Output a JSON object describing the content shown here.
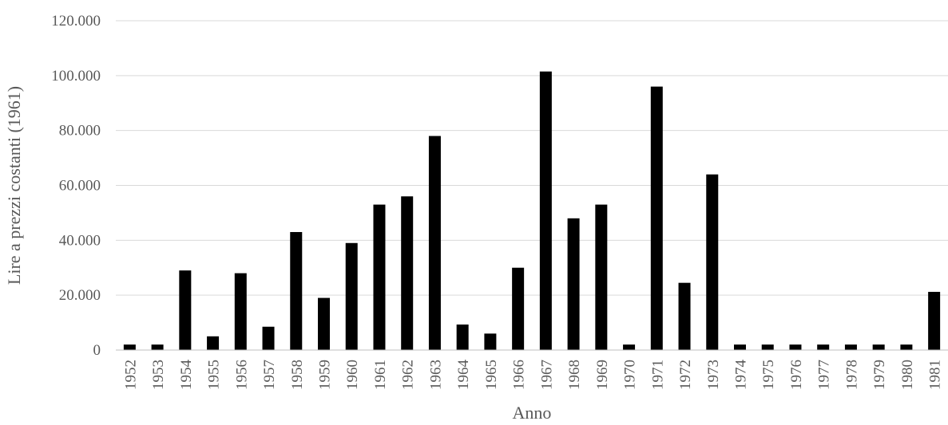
{
  "chart_data": {
    "type": "bar",
    "title": "",
    "xlabel": "Anno",
    "ylabel": "Lire a prezzi costanti (1961)",
    "ylim": [
      0,
      120000
    ],
    "yticks": [
      0,
      20000,
      40000,
      60000,
      80000,
      100000,
      120000
    ],
    "ytick_labels": [
      "0",
      "20.000",
      "40.000",
      "60.000",
      "80.000",
      "100.000",
      "120.000"
    ],
    "categories": [
      "1952",
      "1953",
      "1954",
      "1955",
      "1956",
      "1957",
      "1958",
      "1959",
      "1960",
      "1961",
      "1962",
      "1963",
      "1964",
      "1965",
      "1966",
      "1967",
      "1968",
      "1969",
      "1970",
      "1971",
      "1972",
      "1973",
      "1974",
      "1975",
      "1976",
      "1977",
      "1978",
      "1979",
      "1980",
      "1981"
    ],
    "values": [
      2000,
      2000,
      29000,
      5000,
      28000,
      8500,
      43000,
      19000,
      39000,
      53000,
      56000,
      78000,
      9300,
      6000,
      30000,
      101500,
      48000,
      53000,
      2000,
      96000,
      24500,
      64000,
      2000,
      2000,
      2000,
      2000,
      2000,
      2000,
      2000,
      21200
    ],
    "bar_color": "#000000",
    "grid": true,
    "legend": "none"
  }
}
